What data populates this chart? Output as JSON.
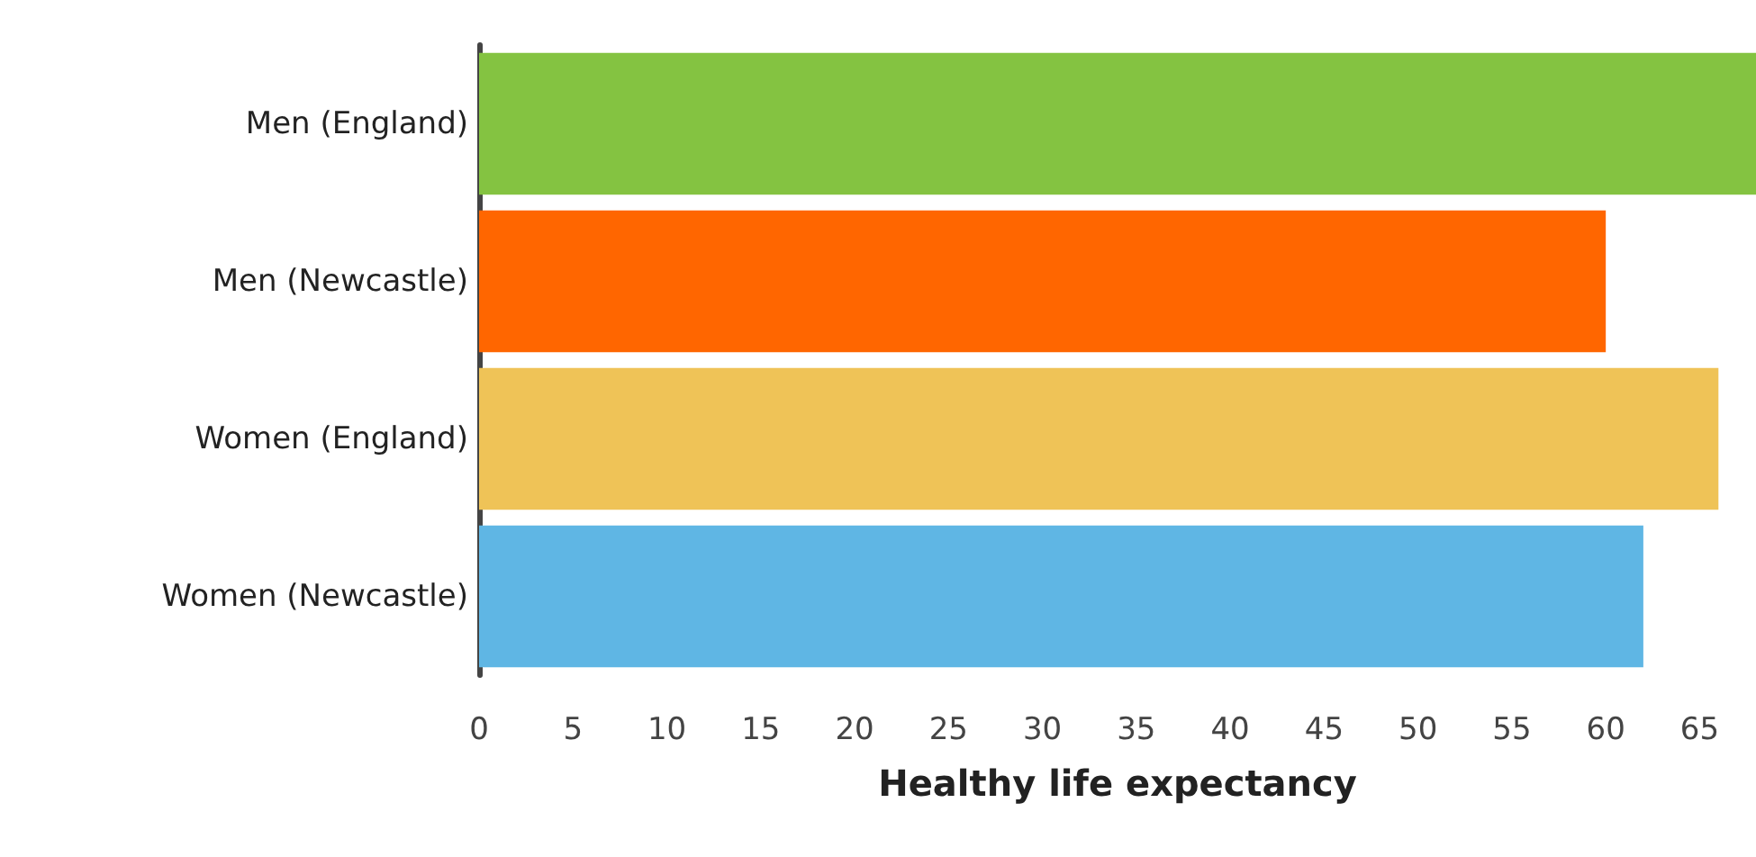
{
  "chart_data": {
    "type": "bar",
    "orientation": "horizontal",
    "xlabel": "Healthy life expectancy",
    "categories": [
      "Men (England)",
      "Men (Newcastle)",
      "Women (England)",
      "Women (Newcastle)"
    ],
    "values": [
      68,
      60,
      66,
      62
    ],
    "colors": [
      "#84c341",
      "#ff6600",
      "#efc357",
      "#5fb6e4"
    ],
    "xlim": [
      0,
      68
    ],
    "xticks": [
      0,
      5,
      10,
      15,
      20,
      25,
      30,
      35,
      40,
      45,
      50,
      55,
      60,
      65
    ],
    "grid": false
  }
}
